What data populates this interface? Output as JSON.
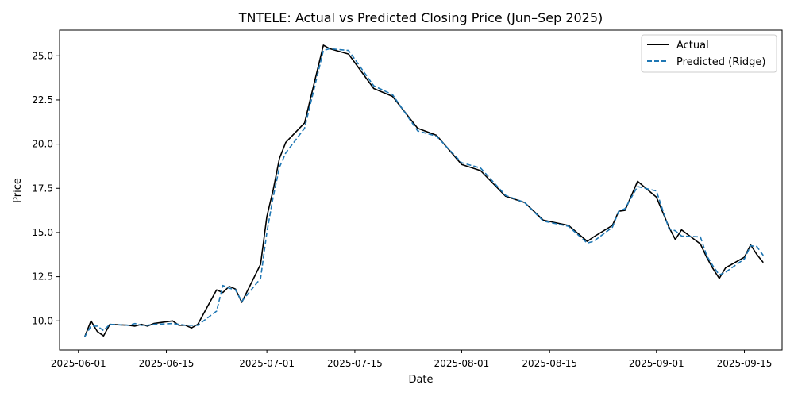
{
  "chart_data": {
    "type": "line",
    "title": "TNTELE: Actual vs Predicted Closing Price (Jun–Sep 2025)",
    "xlabel": "Date",
    "ylabel": "Price",
    "xlim": [
      "2025-05-29",
      "2025-09-21"
    ],
    "ylim": [
      8.35,
      26.45
    ],
    "x_ticks": [
      "2025-06-01",
      "2025-06-15",
      "2025-07-01",
      "2025-07-15",
      "2025-08-01",
      "2025-08-15",
      "2025-09-01",
      "2025-09-15"
    ],
    "y_ticks": [
      "10.0",
      "12.5",
      "15.0",
      "17.5",
      "20.0",
      "22.5",
      "25.0"
    ],
    "grid": false,
    "legend_position": "top-right",
    "series": [
      {
        "name": "Actual",
        "style": "solid",
        "color": "#000000",
        "points": [
          [
            "2025-06-02",
            9.1
          ],
          [
            "2025-06-03",
            10.0
          ],
          [
            "2025-06-04",
            9.4
          ],
          [
            "2025-06-05",
            9.15
          ],
          [
            "2025-06-06",
            9.8
          ],
          [
            "2025-06-09",
            9.75
          ],
          [
            "2025-06-10",
            9.7
          ],
          [
            "2025-06-11",
            9.8
          ],
          [
            "2025-06-12",
            9.7
          ],
          [
            "2025-06-13",
            9.85
          ],
          [
            "2025-06-16",
            10.0
          ],
          [
            "2025-06-17",
            9.75
          ],
          [
            "2025-06-18",
            9.75
          ],
          [
            "2025-06-19",
            9.6
          ],
          [
            "2025-06-20",
            9.8
          ],
          [
            "2025-06-23",
            11.75
          ],
          [
            "2025-06-24",
            11.6
          ],
          [
            "2025-06-25",
            11.95
          ],
          [
            "2025-06-26",
            11.8
          ],
          [
            "2025-06-27",
            11.05
          ],
          [
            "2025-06-30",
            13.2
          ],
          [
            "2025-07-01",
            15.9
          ],
          [
            "2025-07-02",
            17.4
          ],
          [
            "2025-07-03",
            19.2
          ],
          [
            "2025-07-04",
            20.1
          ],
          [
            "2025-07-07",
            21.2
          ],
          [
            "2025-07-10",
            25.6
          ],
          [
            "2025-07-11",
            25.4
          ],
          [
            "2025-07-14",
            25.1
          ],
          [
            "2025-07-18",
            23.15
          ],
          [
            "2025-07-21",
            22.7
          ],
          [
            "2025-07-25",
            20.9
          ],
          [
            "2025-07-28",
            20.5
          ],
          [
            "2025-08-01",
            18.85
          ],
          [
            "2025-08-04",
            18.5
          ],
          [
            "2025-08-08",
            17.05
          ],
          [
            "2025-08-11",
            16.7
          ],
          [
            "2025-08-14",
            15.7
          ],
          [
            "2025-08-18",
            15.4
          ],
          [
            "2025-08-21",
            14.5
          ],
          [
            "2025-08-22",
            14.75
          ],
          [
            "2025-08-25",
            15.4
          ],
          [
            "2025-08-26",
            16.2
          ],
          [
            "2025-08-27",
            16.25
          ],
          [
            "2025-08-29",
            17.9
          ],
          [
            "2025-09-01",
            17.0
          ],
          [
            "2025-09-03",
            15.3
          ],
          [
            "2025-09-04",
            14.6
          ],
          [
            "2025-09-05",
            15.15
          ],
          [
            "2025-09-08",
            14.35
          ],
          [
            "2025-09-09",
            13.6
          ],
          [
            "2025-09-10",
            12.95
          ],
          [
            "2025-09-11",
            12.4
          ],
          [
            "2025-09-12",
            13.0
          ],
          [
            "2025-09-15",
            13.6
          ],
          [
            "2025-09-16",
            14.3
          ],
          [
            "2025-09-17",
            13.75
          ],
          [
            "2025-09-18",
            13.3
          ]
        ]
      },
      {
        "name": "Predicted (Ridge)",
        "style": "dashed",
        "color": "#1f77b4",
        "points": [
          [
            "2025-06-02",
            9.1
          ],
          [
            "2025-06-03",
            9.7
          ],
          [
            "2025-06-04",
            9.7
          ],
          [
            "2025-06-05",
            9.45
          ],
          [
            "2025-06-06",
            9.8
          ],
          [
            "2025-06-09",
            9.75
          ],
          [
            "2025-06-10",
            9.85
          ],
          [
            "2025-06-11",
            9.75
          ],
          [
            "2025-06-12",
            9.75
          ],
          [
            "2025-06-13",
            9.8
          ],
          [
            "2025-06-16",
            9.85
          ],
          [
            "2025-06-17",
            9.8
          ],
          [
            "2025-06-18",
            9.75
          ],
          [
            "2025-06-19",
            9.75
          ],
          [
            "2025-06-20",
            9.75
          ],
          [
            "2025-06-23",
            10.55
          ],
          [
            "2025-06-24",
            12.0
          ],
          [
            "2025-06-25",
            11.85
          ],
          [
            "2025-06-26",
            11.75
          ],
          [
            "2025-06-27",
            11.1
          ],
          [
            "2025-06-30",
            12.4
          ],
          [
            "2025-07-01",
            15.0
          ],
          [
            "2025-07-02",
            17.0
          ],
          [
            "2025-07-03",
            18.7
          ],
          [
            "2025-07-04",
            19.5
          ],
          [
            "2025-07-07",
            20.9
          ],
          [
            "2025-07-10",
            25.3
          ],
          [
            "2025-07-11",
            25.4
          ],
          [
            "2025-07-14",
            25.3
          ],
          [
            "2025-07-18",
            23.3
          ],
          [
            "2025-07-21",
            22.8
          ],
          [
            "2025-07-25",
            20.75
          ],
          [
            "2025-07-28",
            20.45
          ],
          [
            "2025-08-01",
            18.95
          ],
          [
            "2025-08-04",
            18.65
          ],
          [
            "2025-08-08",
            17.1
          ],
          [
            "2025-08-11",
            16.7
          ],
          [
            "2025-08-14",
            15.65
          ],
          [
            "2025-08-18",
            15.35
          ],
          [
            "2025-08-21",
            14.4
          ],
          [
            "2025-08-22",
            14.5
          ],
          [
            "2025-08-25",
            15.3
          ],
          [
            "2025-08-26",
            16.2
          ],
          [
            "2025-08-27",
            16.35
          ],
          [
            "2025-08-29",
            17.6
          ],
          [
            "2025-09-01",
            17.35
          ],
          [
            "2025-09-03",
            15.2
          ],
          [
            "2025-09-04",
            15.1
          ],
          [
            "2025-09-05",
            14.8
          ],
          [
            "2025-09-08",
            14.75
          ],
          [
            "2025-09-09",
            13.7
          ],
          [
            "2025-09-10",
            13.1
          ],
          [
            "2025-09-11",
            12.6
          ],
          [
            "2025-09-12",
            12.75
          ],
          [
            "2025-09-15",
            13.5
          ],
          [
            "2025-09-16",
            14.25
          ],
          [
            "2025-09-17",
            14.2
          ],
          [
            "2025-09-18",
            13.7
          ]
        ]
      }
    ]
  }
}
